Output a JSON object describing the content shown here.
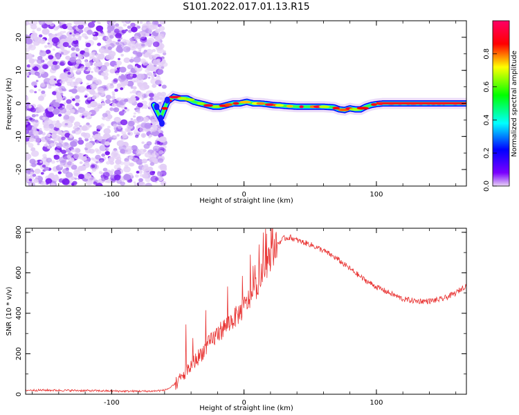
{
  "title": "S101.2022.017.01.13.R15",
  "chart_data": [
    {
      "type": "heatmap",
      "name": "spectrogram",
      "xlabel": "Height of straight line (km)",
      "ylabel": "Frequency (Hz)",
      "xlim": [
        -165,
        168
      ],
      "ylim": [
        -25,
        25
      ],
      "x_ticks": [
        -100,
        0,
        100
      ],
      "y_ticks": [
        -20,
        -10,
        0,
        10,
        20
      ],
      "colorbar": {
        "label": "Normalized spectral amplitude",
        "range": [
          0,
          1
        ],
        "ticks": [
          0.0,
          0.2,
          0.4,
          0.6,
          0.8
        ],
        "colormap": "rainbow",
        "stops": [
          "#e8d4f4",
          "#7a00ff",
          "#0000ff",
          "#00ffff",
          "#00ff00",
          "#ffff00",
          "#ff0000",
          "#ff0066"
        ]
      },
      "noise_region_x": [
        -165,
        -65
      ],
      "ridge": {
        "x": [
          -68,
          -63,
          -58,
          -53,
          -48,
          -43,
          -38,
          -33,
          -28,
          -23,
          -18,
          -13,
          -8,
          -3,
          2,
          7,
          12,
          17,
          22,
          27,
          32,
          40,
          50,
          60,
          68,
          72,
          76,
          80,
          84,
          88,
          92,
          96,
          100,
          105,
          110,
          120,
          130,
          140,
          150,
          160,
          168
        ],
        "y": [
          -0.5,
          -4.5,
          0.5,
          2.0,
          1.5,
          1.5,
          0.5,
          0.0,
          -0.5,
          -1.0,
          -1.0,
          -0.5,
          0.0,
          0.0,
          0.5,
          0.0,
          0.0,
          -0.2,
          -0.5,
          -0.6,
          -0.8,
          -1.0,
          -1.0,
          -1.0,
          -1.2,
          -1.8,
          -2.0,
          -1.5,
          -1.8,
          -1.8,
          -1.0,
          -0.5,
          -0.2,
          0.0,
          0.0,
          0.0,
          0.0,
          0.0,
          0.0,
          0.0,
          0.0
        ]
      }
    },
    {
      "type": "line",
      "name": "snr",
      "xlabel": "Height of straight line (km)",
      "ylabel": "SNR (10 * v/v)",
      "xlim": [
        -165,
        168
      ],
      "ylim": [
        0,
        820
      ],
      "x_ticks": [
        -100,
        0,
        100
      ],
      "y_ticks": [
        0,
        200,
        400,
        600,
        800
      ],
      "line_color": "#e8302f",
      "envelope": {
        "x": [
          -165,
          -150,
          -120,
          -90,
          -70,
          -60,
          -55,
          -50,
          -45,
          -40,
          -35,
          -30,
          -25,
          -20,
          -15,
          -10,
          -5,
          0,
          5,
          10,
          15,
          20,
          25,
          30,
          35,
          40,
          50,
          60,
          70,
          80,
          90,
          100,
          110,
          120,
          130,
          140,
          150,
          160,
          168
        ],
        "y": [
          20,
          20,
          18,
          15,
          15,
          20,
          35,
          60,
          100,
          140,
          180,
          220,
          260,
          300,
          330,
          360,
          390,
          430,
          480,
          540,
          610,
          680,
          740,
          770,
          775,
          760,
          740,
          710,
          670,
          620,
          570,
          530,
          500,
          470,
          460,
          460,
          470,
          500,
          540
        ]
      }
    }
  ]
}
